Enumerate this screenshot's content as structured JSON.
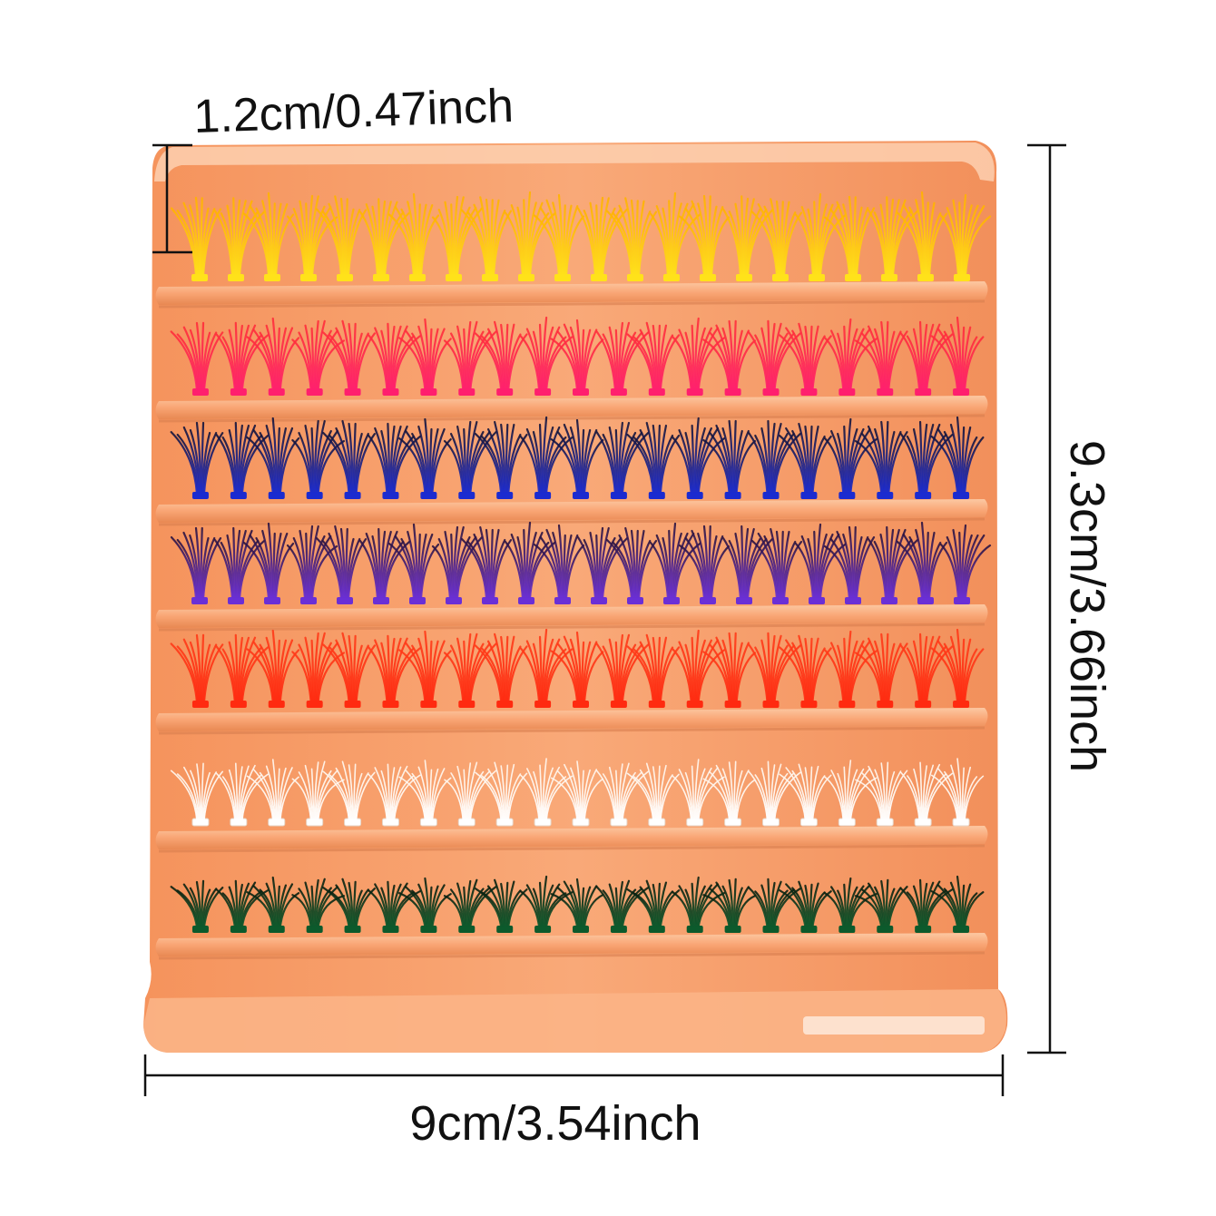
{
  "dimensions": {
    "cluster_length": "1.2cm/0.47inch",
    "tray_height": "9.3cm/3.66inch",
    "tray_width": "9cm/3.54inch"
  },
  "tray": {
    "color": "#f7a06a",
    "rail_color": "#fbb98c",
    "shadow_color": "#d97f4f"
  },
  "lash_rows": [
    {
      "name": "yellow-orange",
      "root": "#ffe21a",
      "tip": "#ffb300",
      "clusters": 22
    },
    {
      "name": "pink-red",
      "root": "#ff1f6e",
      "tip": "#ff2e3a",
      "clusters": 21
    },
    {
      "name": "blue-black",
      "root": "#1b2bd0",
      "tip": "#14143a",
      "clusters": 21
    },
    {
      "name": "purple-black",
      "root": "#6a2fd6",
      "tip": "#2a1340",
      "clusters": 22
    },
    {
      "name": "red-orange",
      "root": "#ff2a10",
      "tip": "#ff3a18",
      "clusters": 21
    },
    {
      "name": "white",
      "root": "#ffffff",
      "tip": "#fff4ea",
      "clusters": 21
    },
    {
      "name": "dark-green",
      "root": "#0c5a2c",
      "tip": "#0a2010",
      "clusters": 21
    }
  ]
}
